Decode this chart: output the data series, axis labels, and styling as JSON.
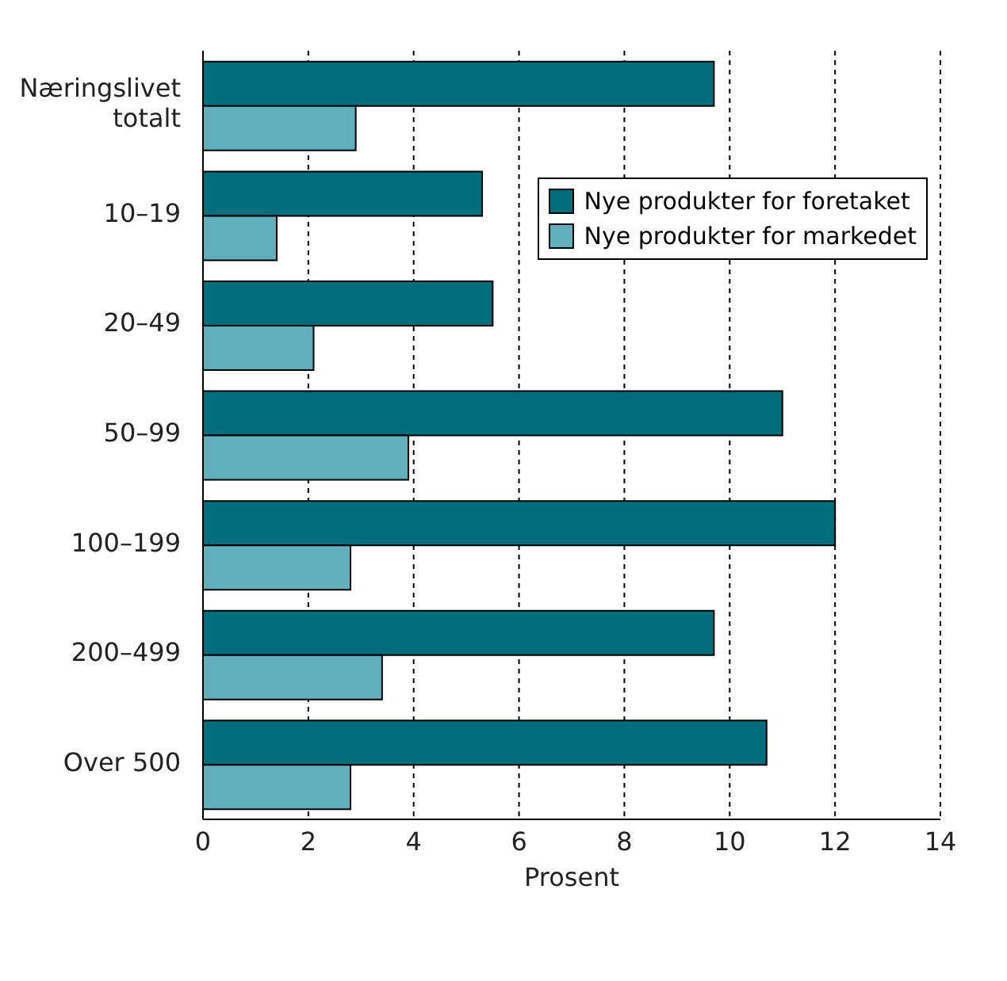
{
  "chart_data": {
    "type": "bar",
    "orientation": "horizontal",
    "xlabel": "Prosent",
    "categories": [
      "Næringslivet totalt",
      "10–19",
      "20–49",
      "50–99",
      "100–199",
      "200–499",
      "Over 500"
    ],
    "series": [
      {
        "name": "Nye produkter for foretaket",
        "color": "#006e7c",
        "values": [
          9.7,
          5.3,
          5.5,
          11.0,
          12.0,
          9.7,
          10.7
        ]
      },
      {
        "name": "Nye produkter for markedet",
        "color": "#5fb0bc",
        "values": [
          2.9,
          1.4,
          2.1,
          3.9,
          2.8,
          3.4,
          2.8
        ]
      }
    ],
    "xlim": [
      0,
      14
    ],
    "xticks": [
      0,
      2,
      4,
      6,
      8,
      10,
      12,
      14
    ],
    "grid": "x",
    "legend": "top right"
  }
}
